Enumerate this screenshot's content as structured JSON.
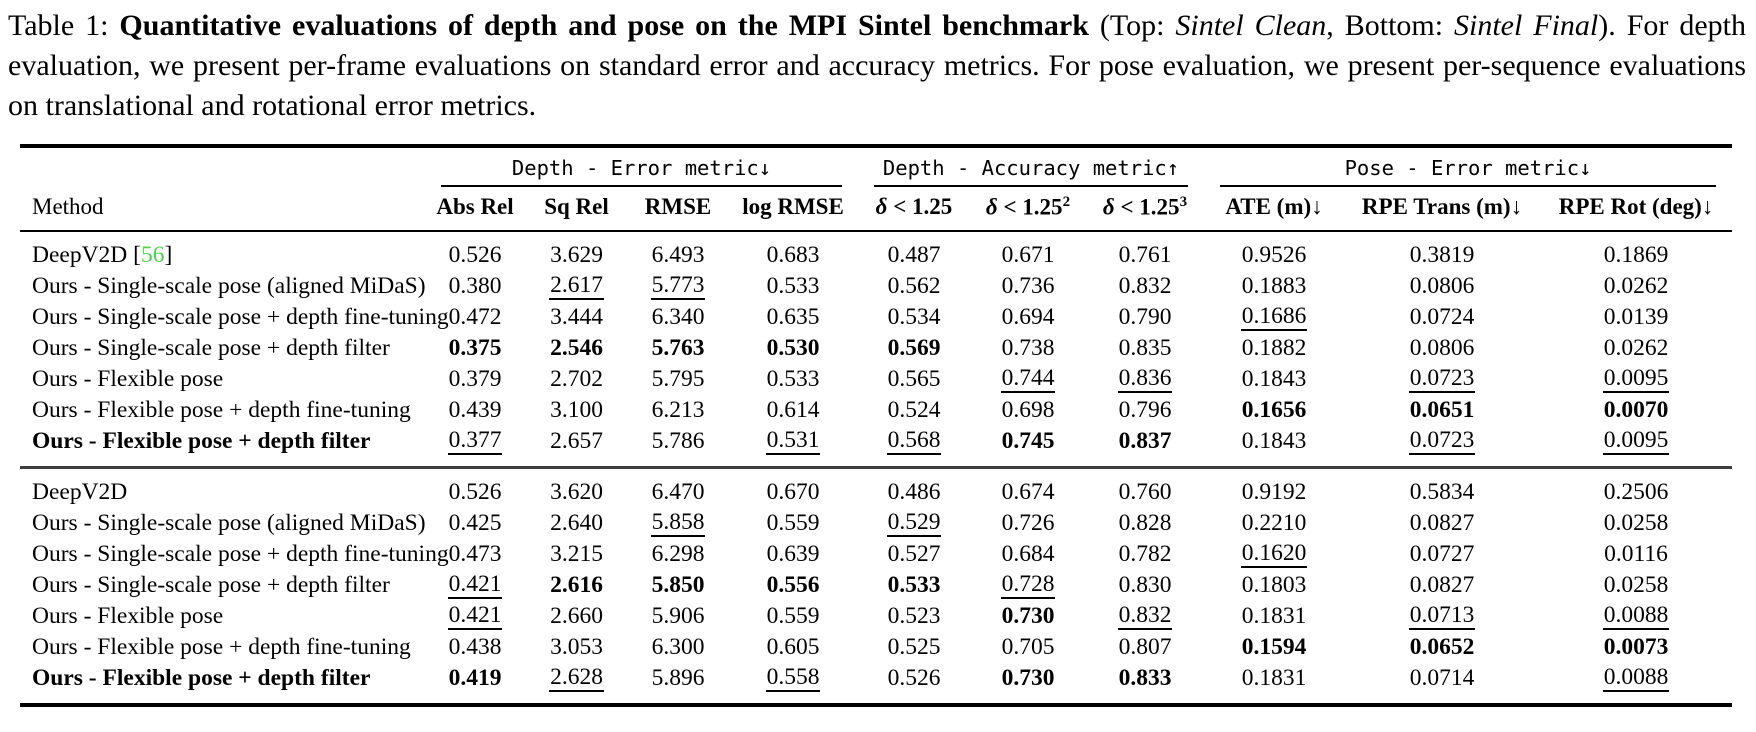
{
  "caption": {
    "label": "Table 1: ",
    "title_bold": "Quantitative evaluations of depth and pose on the MPI Sintel benchmark",
    "paren_open": " (Top: ",
    "top_name": "Sintel Clean",
    "mid": ", Bottom: ",
    "bottom_name": "Sintel Final",
    "after_paren": "). For depth evaluation, we present per-frame evaluations on standard error and accuracy metrics. For pose evaluation, we present per-sequence evaluations on translational and rotational error metrics."
  },
  "table": {
    "method_header": "Method",
    "cite_color": "#4bd44b",
    "groups": [
      {
        "label": "Depth - Error metric↓",
        "span": 4
      },
      {
        "label": "Depth - Accuracy metric↑",
        "span": 3
      },
      {
        "label": "Pose - Error metric↓",
        "span": 3
      }
    ],
    "columns": [
      {
        "label": "Abs Rel"
      },
      {
        "label": "Sq Rel"
      },
      {
        "label": "RMSE"
      },
      {
        "label": "log RMSE"
      },
      {
        "delta": "δ",
        "label": " < 1.25"
      },
      {
        "delta": "δ",
        "label": " < 1.25",
        "sup": "2"
      },
      {
        "delta": "δ",
        "label": " < 1.25",
        "sup": "3"
      },
      {
        "label": "ATE (m)↓"
      },
      {
        "label": "RPE Trans (m)↓"
      },
      {
        "label": "RPE Rot (deg)↓"
      }
    ],
    "sections": [
      {
        "name": "Sintel Clean",
        "rows": [
          {
            "method": "DeepV2D",
            "cite": "56",
            "bold": false,
            "cells": [
              {
                "v": "0.526",
                "f": ""
              },
              {
                "v": "3.629",
                "f": ""
              },
              {
                "v": "6.493",
                "f": ""
              },
              {
                "v": "0.683",
                "f": ""
              },
              {
                "v": "0.487",
                "f": ""
              },
              {
                "v": "0.671",
                "f": ""
              },
              {
                "v": "0.761",
                "f": ""
              },
              {
                "v": "0.9526",
                "f": ""
              },
              {
                "v": "0.3819",
                "f": ""
              },
              {
                "v": "0.1869",
                "f": ""
              }
            ]
          },
          {
            "method": "Ours - Single-scale pose (aligned MiDaS)",
            "bold": false,
            "cells": [
              {
                "v": "0.380",
                "f": ""
              },
              {
                "v": "2.617",
                "f": "u"
              },
              {
                "v": "5.773",
                "f": "u"
              },
              {
                "v": "0.533",
                "f": ""
              },
              {
                "v": "0.562",
                "f": ""
              },
              {
                "v": "0.736",
                "f": ""
              },
              {
                "v": "0.832",
                "f": ""
              },
              {
                "v": "0.1883",
                "f": ""
              },
              {
                "v": "0.0806",
                "f": ""
              },
              {
                "v": "0.0262",
                "f": ""
              }
            ]
          },
          {
            "method": "Ours - Single-scale pose + depth fine-tuning",
            "bold": false,
            "cells": [
              {
                "v": "0.472",
                "f": ""
              },
              {
                "v": "3.444",
                "f": ""
              },
              {
                "v": "6.340",
                "f": ""
              },
              {
                "v": "0.635",
                "f": ""
              },
              {
                "v": "0.534",
                "f": ""
              },
              {
                "v": "0.694",
                "f": ""
              },
              {
                "v": "0.790",
                "f": ""
              },
              {
                "v": "0.1686",
                "f": "u"
              },
              {
                "v": "0.0724",
                "f": ""
              },
              {
                "v": "0.0139",
                "f": ""
              }
            ]
          },
          {
            "method": "Ours - Single-scale pose + depth filter",
            "bold": false,
            "cells": [
              {
                "v": "0.375",
                "f": "b"
              },
              {
                "v": "2.546",
                "f": "b"
              },
              {
                "v": "5.763",
                "f": "b"
              },
              {
                "v": "0.530",
                "f": "b"
              },
              {
                "v": "0.569",
                "f": "b"
              },
              {
                "v": "0.738",
                "f": ""
              },
              {
                "v": "0.835",
                "f": ""
              },
              {
                "v": "0.1882",
                "f": ""
              },
              {
                "v": "0.0806",
                "f": ""
              },
              {
                "v": "0.0262",
                "f": ""
              }
            ]
          },
          {
            "method": "Ours - Flexible pose",
            "bold": false,
            "cells": [
              {
                "v": "0.379",
                "f": ""
              },
              {
                "v": "2.702",
                "f": ""
              },
              {
                "v": "5.795",
                "f": ""
              },
              {
                "v": "0.533",
                "f": ""
              },
              {
                "v": "0.565",
                "f": ""
              },
              {
                "v": "0.744",
                "f": "u"
              },
              {
                "v": "0.836",
                "f": "u"
              },
              {
                "v": "0.1843",
                "f": ""
              },
              {
                "v": "0.0723",
                "f": "u"
              },
              {
                "v": "0.0095",
                "f": "u"
              }
            ]
          },
          {
            "method": "Ours - Flexible pose + depth fine-tuning",
            "bold": false,
            "cells": [
              {
                "v": "0.439",
                "f": ""
              },
              {
                "v": "3.100",
                "f": ""
              },
              {
                "v": "6.213",
                "f": ""
              },
              {
                "v": "0.614",
                "f": ""
              },
              {
                "v": "0.524",
                "f": ""
              },
              {
                "v": "0.698",
                "f": ""
              },
              {
                "v": "0.796",
                "f": ""
              },
              {
                "v": "0.1656",
                "f": "b"
              },
              {
                "v": "0.0651",
                "f": "b"
              },
              {
                "v": "0.0070",
                "f": "b"
              }
            ]
          },
          {
            "method": "Ours - Flexible pose + depth filter",
            "bold": true,
            "cells": [
              {
                "v": "0.377",
                "f": "u"
              },
              {
                "v": "2.657",
                "f": ""
              },
              {
                "v": "5.786",
                "f": ""
              },
              {
                "v": "0.531",
                "f": "u"
              },
              {
                "v": "0.568",
                "f": "u"
              },
              {
                "v": "0.745",
                "f": "b"
              },
              {
                "v": "0.837",
                "f": "b"
              },
              {
                "v": "0.1843",
                "f": ""
              },
              {
                "v": "0.0723",
                "f": "u"
              },
              {
                "v": "0.0095",
                "f": "u"
              }
            ]
          }
        ]
      },
      {
        "name": "Sintel Final",
        "rows": [
          {
            "method": "DeepV2D",
            "bold": false,
            "cells": [
              {
                "v": "0.526",
                "f": ""
              },
              {
                "v": "3.620",
                "f": ""
              },
              {
                "v": "6.470",
                "f": ""
              },
              {
                "v": "0.670",
                "f": ""
              },
              {
                "v": "0.486",
                "f": ""
              },
              {
                "v": "0.674",
                "f": ""
              },
              {
                "v": "0.760",
                "f": ""
              },
              {
                "v": "0.9192",
                "f": ""
              },
              {
                "v": "0.5834",
                "f": ""
              },
              {
                "v": "0.2506",
                "f": ""
              }
            ]
          },
          {
            "method": "Ours - Single-scale pose (aligned MiDaS)",
            "bold": false,
            "cells": [
              {
                "v": "0.425",
                "f": ""
              },
              {
                "v": "2.640",
                "f": ""
              },
              {
                "v": "5.858",
                "f": "u"
              },
              {
                "v": "0.559",
                "f": ""
              },
              {
                "v": "0.529",
                "f": "u"
              },
              {
                "v": "0.726",
                "f": ""
              },
              {
                "v": "0.828",
                "f": ""
              },
              {
                "v": "0.2210",
                "f": ""
              },
              {
                "v": "0.0827",
                "f": ""
              },
              {
                "v": "0.0258",
                "f": ""
              }
            ]
          },
          {
            "method": "Ours - Single-scale pose + depth fine-tuning",
            "bold": false,
            "cells": [
              {
                "v": "0.473",
                "f": ""
              },
              {
                "v": "3.215",
                "f": ""
              },
              {
                "v": "6.298",
                "f": ""
              },
              {
                "v": "0.639",
                "f": ""
              },
              {
                "v": "0.527",
                "f": ""
              },
              {
                "v": "0.684",
                "f": ""
              },
              {
                "v": "0.782",
                "f": ""
              },
              {
                "v": "0.1620",
                "f": "u"
              },
              {
                "v": "0.0727",
                "f": ""
              },
              {
                "v": "0.0116",
                "f": ""
              }
            ]
          },
          {
            "method": "Ours - Single-scale pose + depth filter",
            "bold": false,
            "cells": [
              {
                "v": "0.421",
                "f": "u"
              },
              {
                "v": "2.616",
                "f": "b"
              },
              {
                "v": "5.850",
                "f": "b"
              },
              {
                "v": "0.556",
                "f": "b"
              },
              {
                "v": "0.533",
                "f": "b"
              },
              {
                "v": "0.728",
                "f": "u"
              },
              {
                "v": "0.830",
                "f": ""
              },
              {
                "v": "0.1803",
                "f": ""
              },
              {
                "v": "0.0827",
                "f": ""
              },
              {
                "v": "0.0258",
                "f": ""
              }
            ]
          },
          {
            "method": "Ours - Flexible pose",
            "bold": false,
            "cells": [
              {
                "v": "0.421",
                "f": "u"
              },
              {
                "v": "2.660",
                "f": ""
              },
              {
                "v": "5.906",
                "f": ""
              },
              {
                "v": "0.559",
                "f": ""
              },
              {
                "v": "0.523",
                "f": ""
              },
              {
                "v": "0.730",
                "f": "b"
              },
              {
                "v": "0.832",
                "f": "u"
              },
              {
                "v": "0.1831",
                "f": ""
              },
              {
                "v": "0.0713",
                "f": "u"
              },
              {
                "v": "0.0088",
                "f": "u"
              }
            ]
          },
          {
            "method": "Ours - Flexible pose + depth fine-tuning",
            "bold": false,
            "cells": [
              {
                "v": "0.438",
                "f": ""
              },
              {
                "v": "3.053",
                "f": ""
              },
              {
                "v": "6.300",
                "f": ""
              },
              {
                "v": "0.605",
                "f": ""
              },
              {
                "v": "0.525",
                "f": ""
              },
              {
                "v": "0.705",
                "f": ""
              },
              {
                "v": "0.807",
                "f": ""
              },
              {
                "v": "0.1594",
                "f": "b"
              },
              {
                "v": "0.0652",
                "f": "b"
              },
              {
                "v": "0.0073",
                "f": "b"
              }
            ]
          },
          {
            "method": "Ours - Flexible pose + depth filter",
            "bold": true,
            "cells": [
              {
                "v": "0.419",
                "f": "b"
              },
              {
                "v": "2.628",
                "f": "u"
              },
              {
                "v": "5.896",
                "f": ""
              },
              {
                "v": "0.558",
                "f": "u"
              },
              {
                "v": "0.526",
                "f": ""
              },
              {
                "v": "0.730",
                "f": "b"
              },
              {
                "v": "0.833",
                "f": "b"
              },
              {
                "v": "0.1831",
                "f": ""
              },
              {
                "v": "0.0714",
                "f": ""
              },
              {
                "v": "0.0088",
                "f": "u"
              }
            ]
          }
        ]
      }
    ]
  }
}
